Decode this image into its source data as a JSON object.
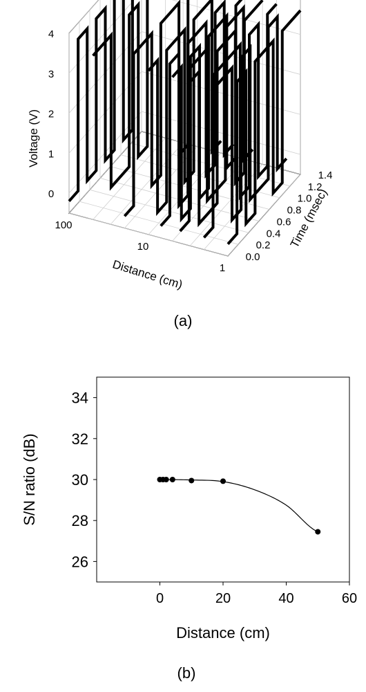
{
  "panel_a": {
    "caption": "(a)",
    "chart_data": {
      "type": "line",
      "projection": "3d",
      "xlabel": "Distance (cm)",
      "ylabel": "Time (msec)",
      "zlabel": "Voltage (V)",
      "x_scale": "log",
      "x_ticks": [
        "100",
        "10",
        "1"
      ],
      "y_ticks": [
        "0.0",
        "0.2",
        "0.4",
        "0.6",
        "0.8",
        "1.0",
        "1.2",
        "1.4"
      ],
      "z_ticks": [
        "0",
        "1",
        "2",
        "3",
        "4"
      ],
      "zlim": [
        -0.5,
        4
      ],
      "series": [
        {
          "x": 100,
          "levels": [
            0,
            1,
            0,
            1,
            0,
            1,
            0,
            1
          ]
        },
        {
          "x": 50,
          "levels": [
            1,
            1,
            0,
            0,
            1,
            0,
            1,
            1
          ]
        },
        {
          "x": 20,
          "levels": [
            0,
            1,
            1,
            0,
            1,
            1,
            0,
            1
          ]
        },
        {
          "x": 10,
          "levels": [
            1,
            0,
            1,
            1,
            0,
            1,
            1,
            0
          ]
        },
        {
          "x": 7,
          "levels": [
            0,
            1,
            0,
            1,
            1,
            0,
            1,
            0
          ]
        },
        {
          "x": 5,
          "levels": [
            1,
            0,
            1,
            0,
            1,
            1,
            0,
            1
          ]
        },
        {
          "x": 4,
          "levels": [
            0,
            1,
            1,
            0,
            0,
            1,
            1,
            0
          ]
        },
        {
          "x": 3,
          "levels": [
            1,
            0,
            0,
            1,
            1,
            0,
            1,
            1
          ]
        },
        {
          "x": 2,
          "levels": [
            0,
            1,
            1,
            1,
            0,
            1,
            0,
            1
          ]
        },
        {
          "x": 1.5,
          "levels": [
            1,
            1,
            0,
            1,
            0,
            0,
            1,
            0
          ]
        },
        {
          "x": 1,
          "levels": [
            0,
            1,
            0,
            1,
            1,
            0,
            1,
            1
          ]
        }
      ],
      "low_voltage": -0.2,
      "high_voltage": 3.6,
      "grid": true
    }
  },
  "panel_b": {
    "caption": "(b)",
    "chart_data": {
      "type": "scatter",
      "xlabel": "Distance (cm)",
      "ylabel": "S/N ratio (dB)",
      "xlim": [
        -20,
        60
      ],
      "ylim": [
        25,
        35
      ],
      "x_ticks": [
        0,
        20,
        40,
        60
      ],
      "y_ticks": [
        26,
        28,
        30,
        32,
        34
      ],
      "points": [
        {
          "x": 0,
          "y": 30.0
        },
        {
          "x": 1,
          "y": 30.0
        },
        {
          "x": 2,
          "y": 30.0
        },
        {
          "x": 4,
          "y": 30.0
        },
        {
          "x": 10,
          "y": 29.95
        },
        {
          "x": 20,
          "y": 29.92
        },
        {
          "x": 50,
          "y": 27.45
        }
      ],
      "fit_curve": {
        "x": [
          0,
          10,
          20,
          30,
          40,
          50
        ],
        "y": [
          30.0,
          29.98,
          29.9,
          29.5,
          28.75,
          27.45
        ]
      },
      "grid": false
    }
  }
}
